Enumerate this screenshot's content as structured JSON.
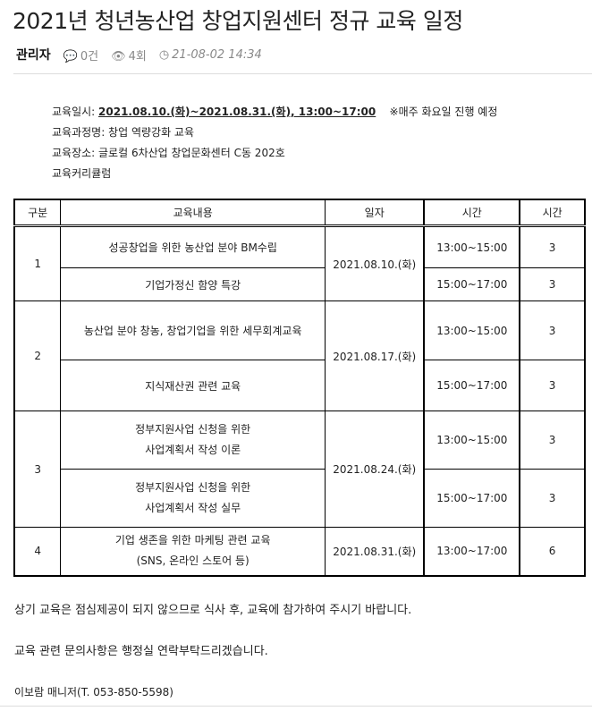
{
  "title": "2021년 청년농산업 창업지원센터 정규 교육 일정",
  "meta": {
    "author": "관리자",
    "comments": "0건",
    "views": "4회",
    "date": "21-08-02 14:34",
    "icons": [
      "comment-icon",
      "eye-icon",
      "clock-icon"
    ]
  },
  "info": {
    "date_label": "교육일시: ",
    "date_value": "2021.08.10.(화)~2021.08.31.(화), 13:00~17:00",
    "date_note": "※매주 화요일 진행 예정",
    "course": "교육과정명: 창업 역량강화 교육",
    "place": "교육장소: 글로컬 6차산업 창업문화센터 C동 202호",
    "curriculum": "교육커리큘럼"
  },
  "table": {
    "headers": [
      "구분",
      "교육내용",
      "일자",
      "시간",
      "시간"
    ],
    "groups": [
      {
        "no": "1",
        "date": "2021.08.10.(화)",
        "rows": [
          {
            "content": "성공창업을 위한 농산업 분야 BM수립",
            "time": "13:00~15:00",
            "hours": "3"
          },
          {
            "content": "기업가정신 함양 특강",
            "time": "15:00~17:00",
            "hours": "3"
          }
        ]
      },
      {
        "no": "2",
        "date": "2021.08.17.(화)",
        "rows": [
          {
            "content": "농산업 분야 창농, 창업기업을 위한 세무회계교육",
            "time": "13:00~15:00",
            "hours": "3"
          },
          {
            "content": "지식재산권 관련 교육",
            "time": "15:00~17:00",
            "hours": "3"
          }
        ]
      },
      {
        "no": "3",
        "date": "2021.08.24.(화)",
        "rows": [
          {
            "content": "정부지원사업 신청을 위한",
            "content2": "사업계획서 작성 이론",
            "time": "13:00~15:00",
            "hours": "3"
          },
          {
            "content": "정부지원사업 신청을 위한",
            "content2": "사업계획서 작성 실무",
            "time": "15:00~17:00",
            "hours": "3"
          }
        ]
      },
      {
        "no": "4",
        "date": "2021.08.31.(화)",
        "rows": [
          {
            "content": "기업 생존을 위한 마케팅 관련 교육",
            "content2": "(SNS, 온라인 스토어 등)",
            "time": "13:00~17:00",
            "hours": "6"
          }
        ]
      }
    ]
  },
  "notes": {
    "lunch": "상기 교육은 점심제공이 되지 않으므로 식사 후, 교육에 참가하여 주시기 바랍니다.",
    "contact": "교육 관련 문의사항은 행정실 연락부탁드리겠습니다.",
    "manager": "이보람 매니저(T. 053-850-5598)"
  }
}
